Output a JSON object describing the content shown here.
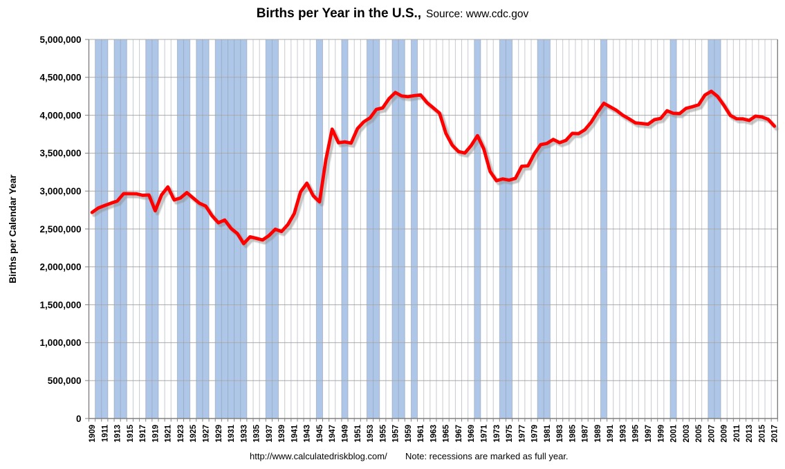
{
  "header": {
    "title_bold": "Births per Year in the U.S.,",
    "title_source": "Source: www.cdc.gov"
  },
  "footer": {
    "url": "http://www.calculatedriskblog.com/",
    "note": "Note: recessions are marked as full year."
  },
  "colors": {
    "line": "#FF0000",
    "recession_band": "#AEC7E9",
    "h_gridline": "#ABABAB",
    "v_gridline": "#8C96A6",
    "axis": "#808080",
    "text": "#000000"
  },
  "chart_data": {
    "type": "line",
    "title": "Births per Year in the U.S.",
    "source_note": "Source: www.cdc.gov",
    "xlabel": "",
    "ylabel": "Births per Calendar Year",
    "ylim": [
      0,
      5000000
    ],
    "ytick_step": 500000,
    "ytick_labels": [
      "0",
      "500,000",
      "1,000,000",
      "1,500,000",
      "2,000,000",
      "2,500,000",
      "3,000,000",
      "3,500,000",
      "4,000,000",
      "4,500,000",
      "5,000,000"
    ],
    "grid": true,
    "legend": false,
    "years": [
      1909,
      1910,
      1911,
      1912,
      1913,
      1914,
      1915,
      1916,
      1917,
      1918,
      1919,
      1920,
      1921,
      1922,
      1923,
      1924,
      1925,
      1926,
      1927,
      1928,
      1929,
      1930,
      1931,
      1932,
      1933,
      1934,
      1935,
      1936,
      1937,
      1938,
      1939,
      1940,
      1941,
      1942,
      1943,
      1944,
      1945,
      1946,
      1947,
      1948,
      1949,
      1950,
      1951,
      1952,
      1953,
      1954,
      1955,
      1956,
      1957,
      1958,
      1959,
      1960,
      1961,
      1962,
      1963,
      1964,
      1965,
      1966,
      1967,
      1968,
      1969,
      1970,
      1971,
      1972,
      1973,
      1974,
      1975,
      1976,
      1977,
      1978,
      1979,
      1980,
      1981,
      1982,
      1983,
      1984,
      1985,
      1986,
      1987,
      1988,
      1989,
      1990,
      1991,
      1992,
      1993,
      1994,
      1995,
      1996,
      1997,
      1998,
      1999,
      2000,
      2001,
      2002,
      2003,
      2004,
      2005,
      2006,
      2007,
      2008,
      2009,
      2010,
      2011,
      2012,
      2013,
      2014,
      2015,
      2016,
      2017
    ],
    "x_tick_labels": [
      "1909",
      "1911",
      "1913",
      "1915",
      "1917",
      "1919",
      "1921",
      "1923",
      "1925",
      "1927",
      "1929",
      "1931",
      "1933",
      "1935",
      "1937",
      "1939",
      "1941",
      "1943",
      "1945",
      "1947",
      "1949",
      "1951",
      "1953",
      "1955",
      "1957",
      "1959",
      "1961",
      "1963",
      "1965",
      "1967",
      "1969",
      "1971",
      "1973",
      "1975",
      "1977",
      "1979",
      "1981",
      "1983",
      "1985",
      "1987",
      "1989",
      "1991",
      "1993",
      "1995",
      "1997",
      "1999",
      "2001",
      "2003",
      "2005",
      "2007",
      "2009",
      "2011",
      "2013",
      "2015",
      "2017"
    ],
    "series": [
      {
        "name": "Births",
        "color": "#FF0000",
        "values": [
          2718000,
          2777000,
          2809000,
          2840000,
          2869000,
          2966000,
          2965000,
          2964000,
          2944000,
          2948000,
          2740000,
          2950000,
          3055000,
          2882000,
          2910000,
          2979000,
          2909000,
          2839000,
          2802000,
          2674000,
          2582000,
          2618000,
          2506000,
          2440000,
          2307000,
          2396000,
          2377000,
          2355000,
          2413000,
          2496000,
          2466000,
          2559000,
          2703000,
          2989000,
          3104000,
          2939000,
          2858000,
          3411000,
          3817000,
          3637000,
          3649000,
          3632000,
          3823000,
          3913000,
          3965000,
          4078000,
          4097000,
          4218000,
          4300000,
          4255000,
          4245000,
          4258000,
          4268000,
          4167000,
          4098000,
          4027000,
          3760000,
          3606000,
          3521000,
          3502000,
          3600000,
          3731000,
          3556000,
          3258000,
          3137000,
          3160000,
          3144000,
          3168000,
          3327000,
          3333000,
          3494000,
          3612000,
          3629000,
          3681000,
          3639000,
          3669000,
          3761000,
          3757000,
          3809000,
          3910000,
          4041000,
          4158000,
          4111000,
          4065000,
          4000000,
          3953000,
          3900000,
          3891000,
          3881000,
          3942000,
          3959000,
          4059000,
          4026000,
          4022000,
          4090000,
          4112000,
          4138000,
          4266000,
          4316000,
          4248000,
          4131000,
          3999000,
          3954000,
          3953000,
          3932000,
          3988000,
          3978000,
          3946000,
          3856000
        ]
      }
    ],
    "recession_bands": [
      [
        1910,
        1911
      ],
      [
        1913,
        1914
      ],
      [
        1918,
        1919
      ],
      [
        1923,
        1924
      ],
      [
        1926,
        1927
      ],
      [
        1929,
        1933
      ],
      [
        1937,
        1938
      ],
      [
        1945,
        1945
      ],
      [
        1949,
        1949
      ],
      [
        1953,
        1954
      ],
      [
        1957,
        1958
      ],
      [
        1960,
        1960
      ],
      [
        1970,
        1970
      ],
      [
        1974,
        1975
      ],
      [
        1980,
        1981
      ],
      [
        1990,
        1990
      ],
      [
        2001,
        2001
      ],
      [
        2007,
        2008
      ]
    ],
    "band_color": "#AEC7E9"
  }
}
